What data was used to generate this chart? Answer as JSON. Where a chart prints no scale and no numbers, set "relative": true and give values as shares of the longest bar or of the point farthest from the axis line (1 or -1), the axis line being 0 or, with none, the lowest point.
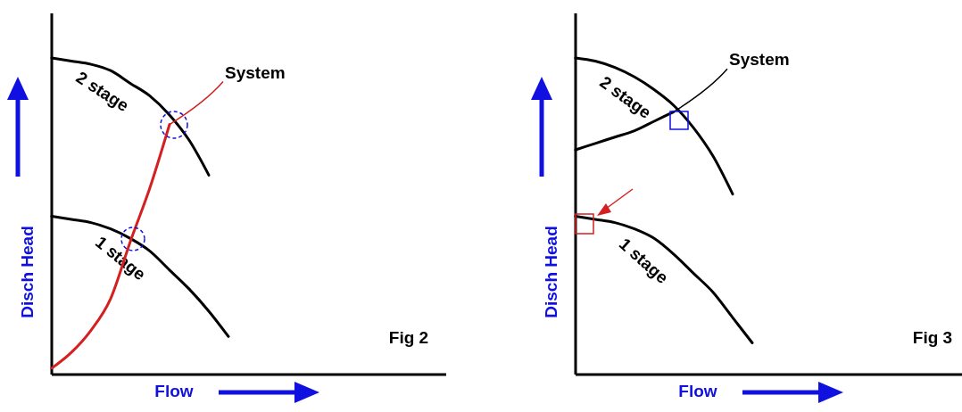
{
  "chart_data": [
    {
      "type": "line",
      "relative": true,
      "xlabel": "Flow",
      "ylabel": "Disch Head",
      "annotations": [
        "Fig 2"
      ],
      "categories": [
        null,
        null,
        null,
        null,
        null,
        null,
        null,
        null,
        null,
        null,
        null,
        null,
        null,
        null,
        null,
        null,
        null,
        null,
        null,
        null,
        null
      ],
      "series": [
        {
          "name": "2 stage",
          "color": "#000000",
          "values": [
            1,
            0.99,
            0.98,
            0.96,
            0.92,
            0.88,
            0.82,
            0.74,
            0.63,
            null,
            null,
            null,
            null,
            null,
            null,
            null,
            null,
            null,
            null,
            null,
            null
          ]
        },
        {
          "name": "1 stage",
          "color": "#000000",
          "values": [
            0.5,
            0.49,
            0.48,
            0.46,
            0.43,
            0.39,
            0.33,
            0.27,
            0.2,
            0.12,
            null,
            null,
            null,
            null,
            null,
            null,
            null,
            null,
            null,
            null,
            null
          ]
        },
        {
          "name": "System",
          "color": "#d42020",
          "values": [
            0.02,
            0.07,
            0.14,
            0.24,
            0.42,
            0.59,
            0.79,
            null,
            null,
            null,
            null,
            null,
            null,
            null,
            null,
            null,
            null,
            null,
            null,
            null,
            null
          ]
        }
      ]
    },
    {
      "type": "line",
      "relative": true,
      "xlabel": "Flow",
      "ylabel": "Disch Head",
      "annotations": [
        "Fig 3"
      ],
      "categories": [
        null,
        null,
        null,
        null,
        null,
        null,
        null,
        null,
        null,
        null,
        null,
        null,
        null,
        null,
        null,
        null,
        null,
        null,
        null,
        null,
        null
      ],
      "series": [
        {
          "name": "2 stage",
          "color": "#000000",
          "values": [
            1,
            0.99,
            0.97,
            0.94,
            0.9,
            0.85,
            0.78,
            0.69,
            0.57,
            null,
            null,
            null,
            null,
            null,
            null,
            null,
            null,
            null,
            null,
            null,
            null
          ]
        },
        {
          "name": "1 stage",
          "color": "#000000",
          "values": [
            0.5,
            0.49,
            0.48,
            0.46,
            0.43,
            0.38,
            0.32,
            0.26,
            0.18,
            0.1,
            null,
            null,
            null,
            null,
            null,
            null,
            null,
            null,
            null,
            null,
            null
          ]
        },
        {
          "name": "System",
          "color": "#000000",
          "values": [
            0.71,
            0.73,
            0.75,
            0.77,
            0.8,
            0.83,
            null,
            null,
            null,
            null,
            null,
            null,
            null,
            null,
            null,
            null,
            null,
            null,
            null,
            null,
            null
          ]
        }
      ]
    }
  ]
}
